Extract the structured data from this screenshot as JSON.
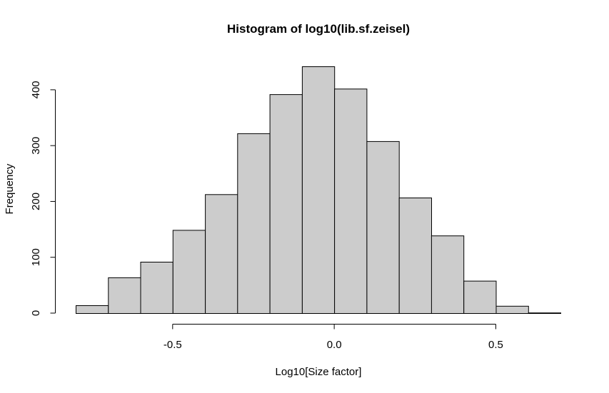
{
  "chart_data": {
    "type": "bar",
    "title": "Histogram of log10(lib.sf.zeisel)",
    "xlabel": "Log10[Size factor]",
    "ylabel": "Frequency",
    "bin_edges": [
      -0.8,
      -0.7,
      -0.6,
      -0.5,
      -0.4,
      -0.3,
      -0.2,
      -0.1,
      0.0,
      0.1,
      0.2,
      0.3,
      0.4,
      0.5,
      0.6,
      0.7
    ],
    "values": [
      14,
      64,
      92,
      149,
      213,
      322,
      392,
      442,
      402,
      308,
      207,
      139,
      58,
      13,
      1
    ],
    "xlim": [
      -0.8,
      0.7
    ],
    "ylim": [
      0,
      442
    ],
    "xticks": [
      -0.5,
      0.0,
      0.5
    ],
    "xtick_labels": [
      "-0.5",
      "0.0",
      "0.5"
    ],
    "yticks": [
      0,
      100,
      200,
      300,
      400
    ],
    "ytick_labels": [
      "0",
      "100",
      "200",
      "300",
      "400"
    ],
    "bar_fill": "#cccccc",
    "bar_stroke": "#000000",
    "grid": false
  }
}
